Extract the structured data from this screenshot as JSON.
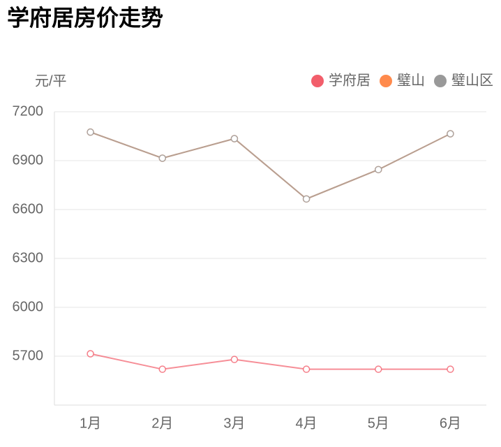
{
  "chart_data": {
    "type": "line",
    "title": "学府居房价走势",
    "y_label": "元/平",
    "categories": [
      "1月",
      "2月",
      "3月",
      "4月",
      "5月",
      "6月"
    ],
    "series": [
      {
        "name": "学府居",
        "color": "#f25e6b",
        "values": [
          5715,
          5620,
          5680,
          5620,
          5620,
          5620
        ]
      },
      {
        "name": "璧山",
        "color": "#ff8a4c",
        "values": [
          7075,
          6915,
          7035,
          6665,
          6845,
          7065
        ]
      },
      {
        "name": "璧山区",
        "color": "#999999",
        "values": [
          7075,
          6915,
          7035,
          6665,
          6845,
          7065
        ]
      }
    ],
    "ylim": [
      5400,
      7200
    ],
    "yticks": [
      5700,
      6000,
      6300,
      6600,
      6900,
      7200
    ],
    "grid": true,
    "legend": "top-right"
  }
}
